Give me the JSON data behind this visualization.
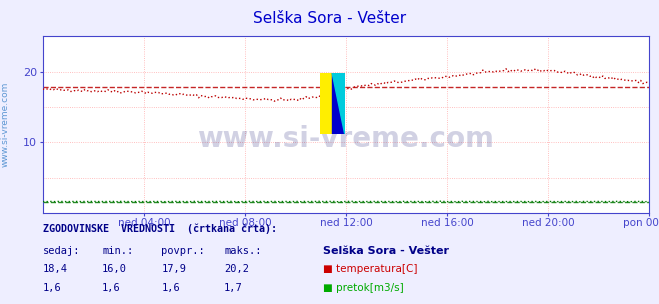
{
  "title": "Selška Sora - Vešter",
  "title_color": "#0000cc",
  "bg_color": "#eeeeff",
  "plot_bg_color": "#ffffff",
  "grid_color": "#ffaaaa",
  "axis_color": "#4444cc",
  "xlim": [
    0,
    288
  ],
  "ylim": [
    0,
    25
  ],
  "yticks": [
    10,
    20
  ],
  "xtick_labels": [
    "ned 04:00",
    "ned 08:00",
    "ned 12:00",
    "ned 16:00",
    "ned 20:00",
    "pon 00:00"
  ],
  "xtick_positions": [
    48,
    96,
    144,
    192,
    240,
    288
  ],
  "temp_color": "#bb0000",
  "flow_color": "#007700",
  "avg_temp": 17.9,
  "avg_flow": 1.6,
  "watermark": "www.si-vreme.com",
  "sidebar_text": "www.si-vreme.com",
  "footer_title": "ZGODOVINSKE  VREDNOSTI  (črtkana črta):",
  "col_headers": [
    "sedaj:",
    "min.:",
    "povpr.:",
    "maks.:"
  ],
  "temp_values": [
    "18,4",
    "16,0",
    "17,9",
    "20,2"
  ],
  "flow_values": [
    "1,6",
    "1,6",
    "1,6",
    "1,7"
  ],
  "legend_station": "Selška Sora - Vešter",
  "legend_temp": "temperatura[C]",
  "legend_flow": "pretok[m3/s]",
  "temp_rect_color": "#cc0000",
  "flow_rect_color": "#00aa00"
}
